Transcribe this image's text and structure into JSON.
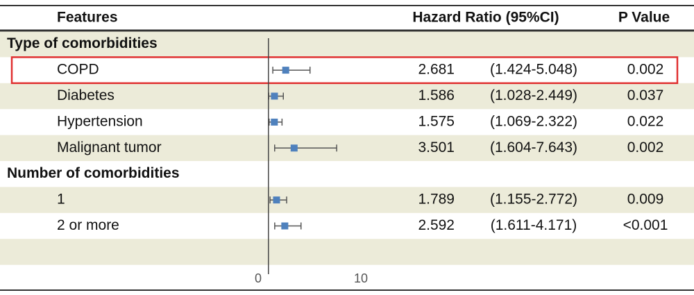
{
  "chart_data": {
    "type": "forest",
    "columns": [
      "Features",
      "Hazard Ratio (95%CI)",
      "P Value"
    ],
    "groups": [
      {
        "name": "Type of comorbidities",
        "categories": [
          "COPD",
          "Diabetes",
          "Hypertension",
          "Malignant tumor"
        ],
        "values": [
          2.681,
          1.586,
          1.575,
          3.501
        ],
        "lower": [
          1.424,
          1.028,
          1.069,
          1.604
        ],
        "upper": [
          5.048,
          2.449,
          2.322,
          7.643
        ],
        "ci_labels": [
          "(1.424-5.048)",
          "(1.028-2.449)",
          "(1.069-2.322)",
          "(1.604-7.643)"
        ],
        "p_values": [
          "0.002",
          "0.037",
          "0.022",
          "0.002"
        ]
      },
      {
        "name": "Number of comorbidities",
        "categories": [
          "1",
          "2 or more"
        ],
        "values": [
          1.789,
          2.592
        ],
        "lower": [
          1.155,
          1.611
        ],
        "upper": [
          2.772,
          4.171
        ],
        "ci_labels": [
          "(1.155-2.772)",
          "(1.611-4.171)"
        ],
        "p_values": [
          "0.009",
          "<0.001"
        ]
      }
    ],
    "color": "#4f81bd",
    "xlim": [
      0,
      10
    ],
    "xticks": [
      0,
      10
    ],
    "ref_line": 1
  }
}
